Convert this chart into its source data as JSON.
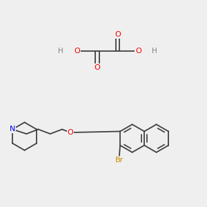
{
  "background_color": "#efefef",
  "atom_colors": {
    "C": "#404040",
    "O": "#ee0000",
    "N": "#0000ee",
    "Br": "#cc8800",
    "H": "#808080"
  },
  "bond_color": "#404040",
  "line_width": 1.3
}
